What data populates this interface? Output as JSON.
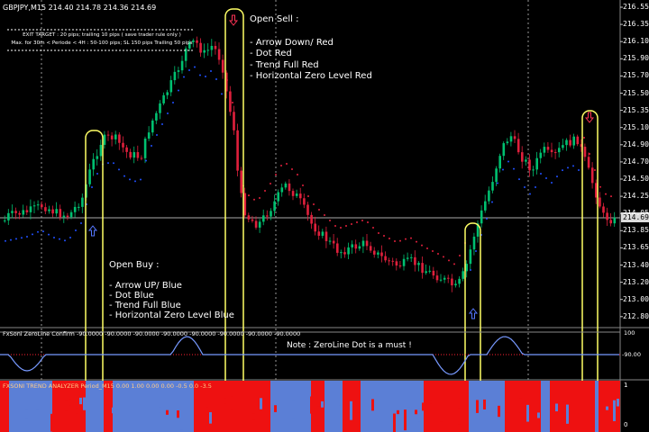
{
  "header": {
    "symbol": "GBPJPY,M15",
    "ohlc": "214.40 214.78 214.36 214.69"
  },
  "exit_box": {
    "line1": "EXIT TARGET : 20 pips; trailing 10 pips ( save trader rule only )",
    "line2": "Max. for 30m < Periode < 4H : 50-100 pips; SL 150 pips Trailing 50 pips"
  },
  "open_sell": {
    "title": "Open Sell :",
    "items": [
      "- Arrow Down/ Red",
      "- Dot Red",
      "- Trend Full Red",
      "- Horizontal Zero Level Red"
    ]
  },
  "open_buy": {
    "title": "Open Buy :",
    "items": [
      "- Arrow UP/ Blue",
      "- Dot Blue",
      "- Trend Full Blue",
      "- Horizontal Zero Level  Blue"
    ]
  },
  "price_axis": {
    "labels": [
      "216.55",
      "216.35",
      "216.10",
      "215.90",
      "215.70",
      "215.50",
      "215.35",
      "215.10",
      "214.90",
      "214.70",
      "214.50",
      "214.25",
      "214.05",
      "213.85",
      "213.65",
      "213.40",
      "213.20",
      "213.00",
      "212.80"
    ],
    "current": "214.69"
  },
  "zeroline": {
    "title": "FxSoni ZeroLine Confirm",
    "values": "-90.0000 -90.0000 -90.0000 -90.0000 -90.0000 -90.0000 -90.0000 -90.0000",
    "note": "Note : ZeroLine Dot is a must !",
    "axis": [
      "100",
      "-90.00"
    ]
  },
  "trend": {
    "title": "FXSONI TREND ANALYZER Period_M15 0.00 1.00 0.00 0.00",
    "values": "-0.5 0.0 -3.5",
    "axis": [
      "1",
      "0"
    ]
  },
  "colors": {
    "bull": "#00c070",
    "bear": "#e0203c",
    "dot_blue": "#2050ff",
    "dot_red": "#e0203c",
    "highlight": "#ffff66",
    "trend_blue": "#5b7fd6",
    "trend_red": "#ee1111"
  }
}
